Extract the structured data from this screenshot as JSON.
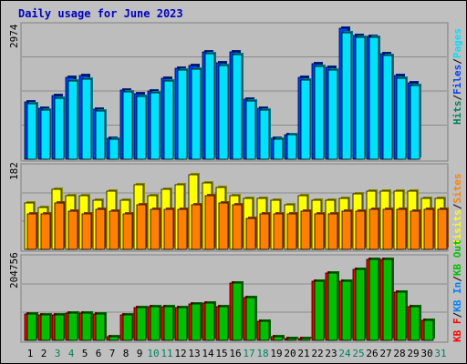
{
  "title": "Daily usage for June 2023",
  "colors": {
    "background": "#c0c0c0",
    "panel": "#bdbdbd",
    "hits": "#00805c",
    "files": "#0040ff",
    "pages": "#00e0ff",
    "visits": "#ffff00",
    "sites": "#ff8000",
    "kbin": "#0080ff",
    "kbout": "#00c000",
    "kbf": "#ff0000",
    "weekend": "#00805c",
    "weekday": "#000000",
    "separator": "#000000"
  },
  "chart_data": [
    {
      "type": "bar",
      "title": "Daily usage for June 2023",
      "categories": [
        "1",
        "2",
        "3",
        "4",
        "5",
        "6",
        "7",
        "8",
        "9",
        "10",
        "11",
        "12",
        "13",
        "14",
        "15",
        "16",
        "17",
        "18",
        "19",
        "20",
        "21",
        "22",
        "23",
        "24",
        "25",
        "26",
        "27",
        "28",
        "29",
        "30",
        "31"
      ],
      "weekend_days": [
        3,
        4,
        10,
        11,
        17,
        18,
        24,
        25,
        31
      ],
      "ymax_label": "2974",
      "ylim": [
        0,
        2974
      ],
      "legend": [
        {
          "text": "Hits",
          "color_key": "hits"
        },
        {
          "text": "Files",
          "color_key": "files"
        },
        {
          "text": "Pages",
          "color_key": "pages"
        }
      ],
      "separator": "/",
      "series": [
        {
          "name": "Hits",
          "color_key": "hits",
          "values": [
            0,
            0,
            0,
            0,
            0,
            0,
            0,
            0,
            0,
            0,
            0,
            0,
            0,
            0,
            0,
            0,
            0,
            0,
            0,
            0,
            0,
            0,
            0,
            0,
            0,
            0,
            0,
            0,
            0,
            0,
            0
          ]
        },
        {
          "name": "Files",
          "color_key": "files",
          "values": [
            1290,
            1140,
            1440,
            1840,
            1880,
            1120,
            480,
            1560,
            1470,
            1540,
            1820,
            2060,
            2110,
            2430,
            2180,
            2410,
            1350,
            1140,
            470,
            560,
            1840,
            2150,
            2070,
            2960,
            2790,
            2770,
            2380,
            1880,
            1730,
            0,
            0
          ]
        },
        {
          "name": "Pages",
          "color_key": "pages",
          "values": [
            1260,
            1110,
            1380,
            1770,
            1800,
            1080,
            450,
            1510,
            1420,
            1500,
            1760,
            2000,
            2040,
            2380,
            2120,
            2360,
            1310,
            1100,
            450,
            550,
            1790,
            2100,
            2000,
            2860,
            2740,
            2740,
            2330,
            1830,
            1670,
            0,
            0
          ]
        }
      ]
    },
    {
      "type": "bar",
      "categories": [
        "1",
        "2",
        "3",
        "4",
        "5",
        "6",
        "7",
        "8",
        "9",
        "10",
        "11",
        "12",
        "13",
        "14",
        "15",
        "16",
        "17",
        "18",
        "19",
        "20",
        "21",
        "22",
        "23",
        "24",
        "25",
        "26",
        "27",
        "28",
        "29",
        "30",
        "31"
      ],
      "ymax_label": "182",
      "ylim": [
        0,
        182
      ],
      "legend": [
        {
          "text": "Visits",
          "color_key": "visits"
        },
        {
          "text": "Sites",
          "color_key": "sites"
        }
      ],
      "separator": "/",
      "series": [
        {
          "name": "Visits",
          "color_key": "visits",
          "values": [
            105,
            95,
            135,
            120,
            120,
            110,
            130,
            110,
            145,
            120,
            135,
            145,
            168,
            150,
            140,
            120,
            115,
            115,
            110,
            100,
            120,
            110,
            110,
            115,
            125,
            130,
            130,
            130,
            130,
            115,
            115
          ]
        },
        {
          "name": "Sites",
          "color_key": "sites",
          "values": [
            80,
            80,
            105,
            85,
            80,
            90,
            85,
            80,
            100,
            90,
            90,
            90,
            100,
            120,
            105,
            100,
            70,
            80,
            80,
            80,
            85,
            80,
            80,
            85,
            85,
            90,
            90,
            90,
            85,
            90,
            90
          ]
        }
      ]
    },
    {
      "type": "bar",
      "categories": [
        "1",
        "2",
        "3",
        "4",
        "5",
        "6",
        "7",
        "8",
        "9",
        "10",
        "11",
        "12",
        "13",
        "14",
        "15",
        "16",
        "17",
        "18",
        "19",
        "20",
        "21",
        "22",
        "23",
        "24",
        "25",
        "26",
        "27",
        "28",
        "29",
        "30",
        "31"
      ],
      "ymax_label": "204756",
      "ylim": [
        0,
        204756
      ],
      "legend": [
        {
          "text": "KB F",
          "color_key": "kbf"
        },
        {
          "text": "KB In",
          "color_key": "kbin"
        },
        {
          "text": "KB Out",
          "color_key": "kbout"
        }
      ],
      "separator": "/",
      "series": [
        {
          "name": "KB F",
          "color_key": "kbf",
          "values": [
            66000,
            64000,
            65000,
            68000,
            70000,
            66000,
            9000,
            64000,
            83000,
            86000,
            86000,
            82000,
            93000,
            94000,
            86000,
            144000,
            108000,
            48000,
            10000,
            5000,
            5000,
            150000,
            170000,
            150000,
            180000,
            204756,
            204756,
            122000,
            86000,
            50000,
            0
          ]
        },
        {
          "name": "KB In",
          "color_key": "kbin",
          "values": [
            0,
            0,
            0,
            0,
            0,
            0,
            0,
            0,
            0,
            0,
            0,
            0,
            0,
            0,
            0,
            0,
            0,
            0,
            0,
            0,
            0,
            0,
            0,
            0,
            0,
            0,
            0,
            0,
            0,
            0,
            0
          ]
        },
        {
          "name": "KB Out",
          "color_key": "kbout",
          "values": [
            66000,
            64000,
            65000,
            68000,
            70000,
            66000,
            9000,
            64000,
            83000,
            86000,
            86000,
            82000,
            93000,
            94000,
            86000,
            144000,
            108000,
            48000,
            10000,
            5000,
            5000,
            150000,
            170000,
            150000,
            180000,
            204756,
            204756,
            122000,
            86000,
            50000,
            0
          ]
        }
      ]
    }
  ]
}
